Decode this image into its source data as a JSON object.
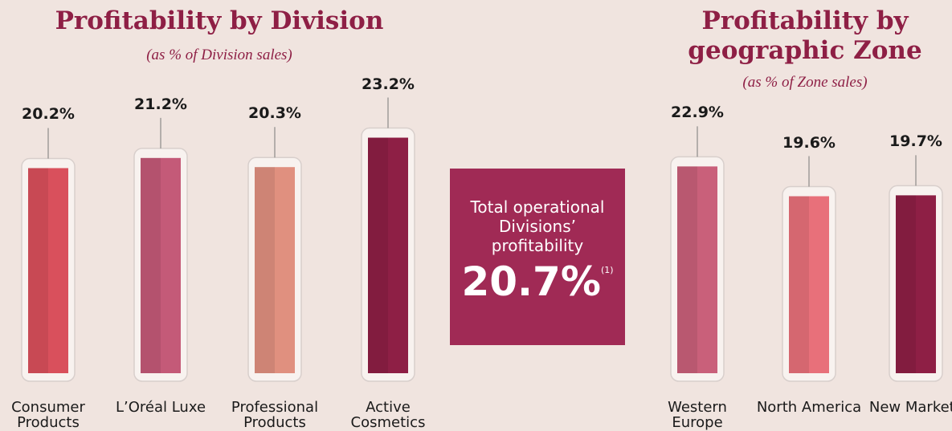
{
  "chart_data": [
    {
      "type": "bar",
      "title": "Profitability by Division",
      "subtitle": "(as % of Division sales)",
      "categories": [
        "Consumer Products",
        "L’Oréal Luxe",
        "Professional Products",
        "Active Cosmetics"
      ],
      "values": [
        20.2,
        21.2,
        20.3,
        23.2
      ],
      "value_labels": [
        "20.2%",
        "21.2%",
        "20.3%",
        "23.2%"
      ],
      "colors": [
        "#d9505c",
        "#c45a78",
        "#e0907f",
        "#8e1f45"
      ]
    },
    {
      "type": "bar",
      "title": "Profitability by geographic Zone",
      "subtitle": "(as % of Zone sales)",
      "categories": [
        "Western Europe",
        "North America",
        "New Markets"
      ],
      "values": [
        22.9,
        19.6,
        19.7
      ],
      "value_labels": [
        "22.9%",
        "19.6%",
        "19.7%"
      ],
      "colors": [
        "#c9607a",
        "#e8707a",
        "#8e1f45"
      ]
    }
  ],
  "callout": {
    "text": "Total operational Divisions’ profitability",
    "value": 20.7,
    "value_label": "20.7%",
    "note": "(1)"
  }
}
